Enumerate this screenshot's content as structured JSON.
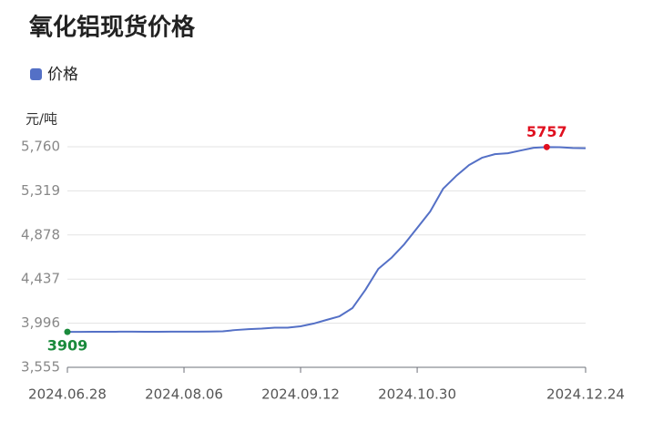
{
  "chart_data": {
    "type": "line",
    "title": "氧化铝现货价格",
    "y_label": "元/吨",
    "categories": [
      "2024.06.28",
      null,
      null,
      null,
      null,
      null,
      null,
      null,
      null,
      "2024.08.06",
      null,
      null,
      null,
      null,
      null,
      null,
      null,
      null,
      "2024.09.12",
      null,
      null,
      null,
      null,
      null,
      null,
      null,
      null,
      "2024.10.30",
      null,
      null,
      null,
      null,
      null,
      null,
      null,
      null,
      null,
      null,
      null,
      null,
      "2024.12.24"
    ],
    "series": [
      {
        "name": "价格",
        "color": "#5470c6",
        "values": [
          3909,
          3909,
          3910,
          3910,
          3911,
          3911,
          3910,
          3910,
          3911,
          3911,
          3912,
          3913,
          3915,
          3928,
          3937,
          3942,
          3951,
          3951,
          3965,
          3992,
          4029,
          4065,
          4147,
          4329,
          4539,
          4648,
          4785,
          4948,
          5112,
          5340,
          5467,
          5577,
          5650,
          5686,
          5695,
          5723,
          5750,
          5757,
          5755,
          5748,
          5745
        ]
      }
    ],
    "ylim": [
      3555,
      5760
    ],
    "yticks": [
      {
        "value": 3555,
        "label": "3,555"
      },
      {
        "value": 3996,
        "label": "3,996"
      },
      {
        "value": 4437,
        "label": "4,437"
      },
      {
        "value": 4878,
        "label": "4,878"
      },
      {
        "value": 5319,
        "label": "5,319"
      },
      {
        "value": 5760,
        "label": "5,760"
      }
    ],
    "grid": true,
    "first_label_color": "#1a8a3c",
    "max_label_color": "#e0101f"
  }
}
